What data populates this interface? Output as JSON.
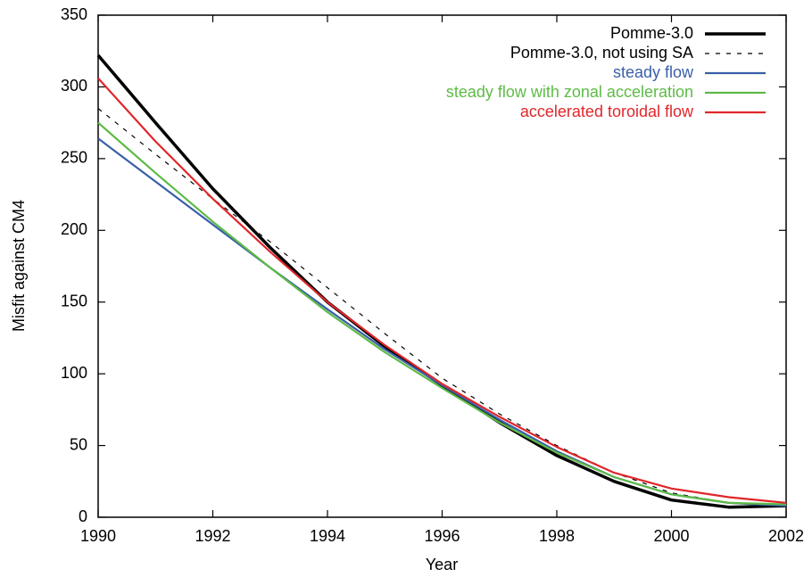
{
  "chart_data": {
    "type": "line",
    "x_label": "Year",
    "y_label": "Misfit against CM4",
    "x": [
      1990,
      1991,
      1992,
      1993,
      1994,
      1995,
      1996,
      1997,
      1998,
      1999,
      2000,
      2001,
      2002
    ],
    "xlim": [
      1990,
      2002
    ],
    "xticks": [
      1990,
      1992,
      1994,
      1996,
      1998,
      2000,
      2002
    ],
    "ylim": [
      0,
      350
    ],
    "yticks": [
      0,
      50,
      100,
      150,
      200,
      250,
      300,
      350
    ],
    "legend": "top-right",
    "series": [
      {
        "name": "Pomme-3.0",
        "color": "#000000",
        "linestyle": "solid",
        "linewidth": 3.5,
        "values": [
          322,
          275,
          229,
          188,
          150,
          119,
          92,
          66,
          43,
          25,
          12,
          7,
          8
        ]
      },
      {
        "name": "Pomme-3.0, not using SA",
        "color": "#000000",
        "linestyle": "dashed",
        "linewidth": 1.2,
        "values": [
          285,
          253,
          222,
          192,
          160,
          128,
          97,
          72,
          50,
          31,
          17,
          10,
          8
        ]
      },
      {
        "name": "steady flow",
        "color": "#3a5fa8",
        "linestyle": "solid",
        "linewidth": 2.2,
        "values": [
          264,
          234,
          204,
          174,
          145,
          117,
          92,
          68,
          46,
          28,
          16,
          10,
          8
        ]
      },
      {
        "name": "steady flow with zonal acceleration",
        "color": "#5dbb46",
        "linestyle": "solid",
        "linewidth": 2.2,
        "values": [
          275,
          240,
          206,
          174,
          143,
          115,
          90,
          66,
          45,
          28,
          16,
          10,
          9
        ]
      },
      {
        "name": "accelerated toroidal flow",
        "color": "#e0262b",
        "linestyle": "solid",
        "linewidth": 2.2,
        "values": [
          306,
          262,
          222,
          185,
          150,
          120,
          93,
          70,
          49,
          31,
          20,
          14,
          10
        ]
      }
    ]
  }
}
